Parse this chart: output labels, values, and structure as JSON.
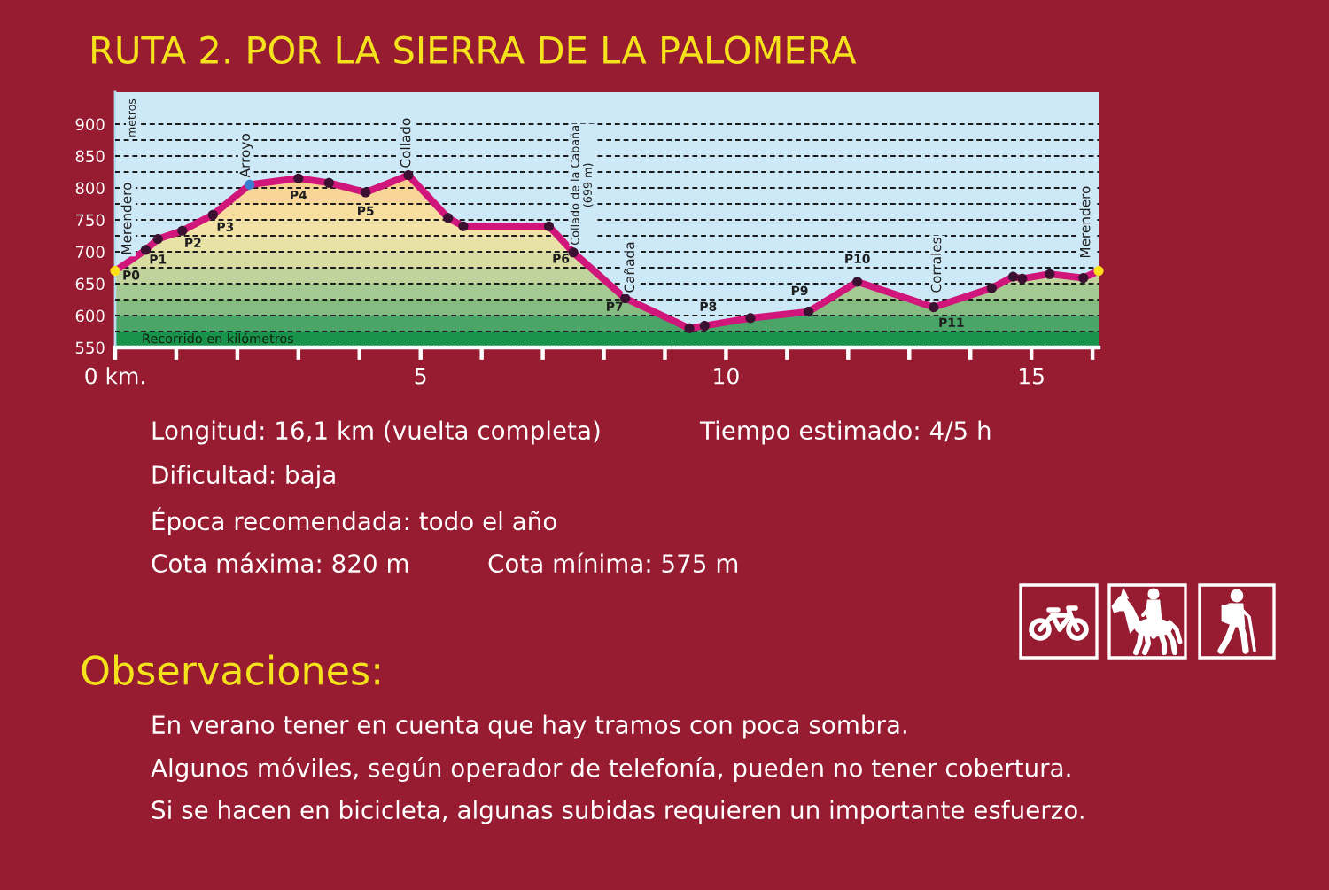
{
  "chart_data": {
    "type": "area",
    "title": "RUTA 2. POR LA SIERRA DE LA PALOMERA",
    "xlabel": "Recorrido en kilómetros",
    "ylabel": "metros",
    "xlim": [
      0,
      16.1
    ],
    "xticks": [
      {
        "value": 0,
        "label": "0 km."
      },
      {
        "value": 1,
        "label": null
      },
      {
        "value": 2,
        "label": null
      },
      {
        "value": 3,
        "label": null
      },
      {
        "value": 4,
        "label": null
      },
      5,
      {
        "value": 6,
        "label": null
      },
      {
        "value": 7,
        "label": null
      },
      {
        "value": 8,
        "label": null
      },
      {
        "value": 9,
        "label": null
      },
      10,
      {
        "value": 11,
        "label": null
      },
      {
        "value": 12,
        "label": null
      },
      {
        "value": 13,
        "label": null
      },
      {
        "value": 14,
        "label": null
      },
      15,
      {
        "value": 16,
        "label": null
      }
    ],
    "ylim": [
      550,
      950
    ],
    "yticks": [
      550,
      {
        "value": 575,
        "label": null
      },
      600,
      {
        "value": 625,
        "label": null
      },
      650,
      {
        "value": 675,
        "label": null
      },
      700,
      {
        "value": 725,
        "label": null
      },
      750,
      {
        "value": 775,
        "label": null
      },
      800,
      {
        "value": 825,
        "label": null
      },
      850,
      {
        "value": 875,
        "label": null
      },
      900
    ],
    "grid": "y",
    "series": [
      {
        "color": "#d0167a",
        "x": [
          0,
          0.5,
          0.7,
          1.1,
          1.6,
          2.2,
          3.0,
          3.5,
          4.1,
          4.8,
          5.45,
          5.7,
          7.1,
          7.5,
          8.35,
          9.4,
          9.65,
          10.4,
          11.35,
          12.15,
          13.4,
          14.35,
          14.7,
          14.85,
          15.3,
          15.85,
          16.1
        ],
        "values": [
          670,
          703,
          720,
          733,
          758,
          805,
          815,
          808,
          793,
          820,
          753,
          740,
          740,
          699,
          627,
          580,
          584,
          596,
          606,
          653,
          613,
          643,
          661,
          658,
          665,
          659,
          670
        ]
      },
      {
        "type": "scatter",
        "x": [
          0,
          0.5,
          0.7,
          1.1,
          1.6,
          2.2,
          3.0,
          3.5,
          4.1,
          4.8,
          5.45,
          5.7,
          7.1,
          7.5,
          8.35,
          9.4,
          9.65,
          10.4,
          11.35,
          12.15,
          13.4,
          14.35,
          14.7,
          14.85,
          15.3,
          15.85,
          16.1
        ],
        "values": [
          670,
          703,
          720,
          733,
          758,
          805,
          815,
          808,
          793,
          820,
          753,
          740,
          740,
          699,
          627,
          580,
          584,
          596,
          606,
          653,
          613,
          643,
          661,
          658,
          665,
          659,
          670
        ],
        "colors": [
          "#ffe11a",
          "#3b1030",
          "#3b1030",
          "#3b1030",
          "#3b1030",
          "#3a7fd0",
          "#3b1030",
          "#3b1030",
          "#3b1030",
          "#3b1030",
          "#3b1030",
          "#3b1030",
          "#3b1030",
          "#3b1030",
          "#3b1030",
          "#3b1030",
          "#3b1030",
          "#3b1030",
          "#3b1030",
          "#3b1030",
          "#3b1030",
          "#3b1030",
          "#3b1030",
          "#3b1030",
          "#3b1030",
          "#3b1030",
          "#ffe11a"
        ]
      }
    ],
    "bands": [
      {
        "axis": "y",
        "from": 550,
        "to": 575,
        "color": "#0d9a4a"
      },
      {
        "axis": "y",
        "from": 575,
        "to": 600,
        "color": "#45ad68"
      },
      {
        "axis": "y",
        "from": 600,
        "to": 625,
        "color": "#82c682"
      },
      {
        "axis": "y",
        "from": 625,
        "to": 650,
        "color": "#a3d495"
      },
      {
        "axis": "y",
        "from": 650,
        "to": 675,
        "color": "#c0de9f"
      },
      {
        "axis": "y",
        "from": 675,
        "to": 700,
        "color": "#d8e7a4"
      },
      {
        "axis": "y",
        "from": 700,
        "to": 725,
        "color": "#e9eeaa"
      },
      {
        "axis": "y",
        "from": 725,
        "to": 750,
        "color": "#f4eea8"
      },
      {
        "axis": "y",
        "from": 750,
        "to": 775,
        "color": "#fae9a4"
      },
      {
        "axis": "y",
        "from": 775,
        "to": 800,
        "color": "#f9e19a"
      },
      {
        "axis": "y",
        "from": 800,
        "to": 825,
        "color": "#f8d890"
      }
    ],
    "annotations": [
      {
        "text": "Merendero",
        "x": 0,
        "y": 670
      },
      {
        "text": "Arroyo",
        "x": 2.2,
        "y": 805
      },
      {
        "text": "Collado",
        "x": 4.8,
        "y": 820
      },
      {
        "text": "Collado de la Cabaña\n(699 m)",
        "x": 7.5,
        "y": 699
      },
      {
        "text": "Cañada",
        "x": 8.35,
        "y": 627
      },
      {
        "text": "Corrales",
        "x": 13.4,
        "y": 613
      },
      {
        "text": "Merendero",
        "x": 16.1,
        "y": 670
      },
      {
        "text": "P0",
        "x": 0,
        "y": 670
      },
      {
        "text": "P1",
        "x": 0.7,
        "y": 720
      },
      {
        "text": "P2",
        "x": 1.1,
        "y": 733
      },
      {
        "text": "P3",
        "x": 1.6,
        "y": 758
      },
      {
        "text": "P4",
        "x": 3.0,
        "y": 815
      },
      {
        "text": "P5",
        "x": 4.1,
        "y": 793
      },
      {
        "text": "P6",
        "x": 7.5,
        "y": 699
      },
      {
        "text": "P7",
        "x": 8.35,
        "y": 627
      },
      {
        "text": "P8",
        "x": 9.65,
        "y": 584
      },
      {
        "text": "P9",
        "x": 11.35,
        "y": 606
      },
      {
        "text": "P10",
        "x": 12.15,
        "y": 653
      },
      {
        "text": "P11",
        "x": 13.4,
        "y": 613
      },
      "Longitud: 16,1 km (vuelta completa)",
      "Tiempo estimado: 4/5 h",
      "Dificultad: baja",
      "Época recomendada: todo el año",
      "Cota máxima: 820 m",
      "Cota mínima: 575 m",
      "Observaciones:",
      "En verano tener en cuenta que hay tramos con poca sombra.",
      "Algunos móviles, según operador de telefonía, pueden no tener cobertura.",
      "Si se hacen en bicicleta, algunas subidas requieren un importante esfuerzo."
    ]
  }
}
